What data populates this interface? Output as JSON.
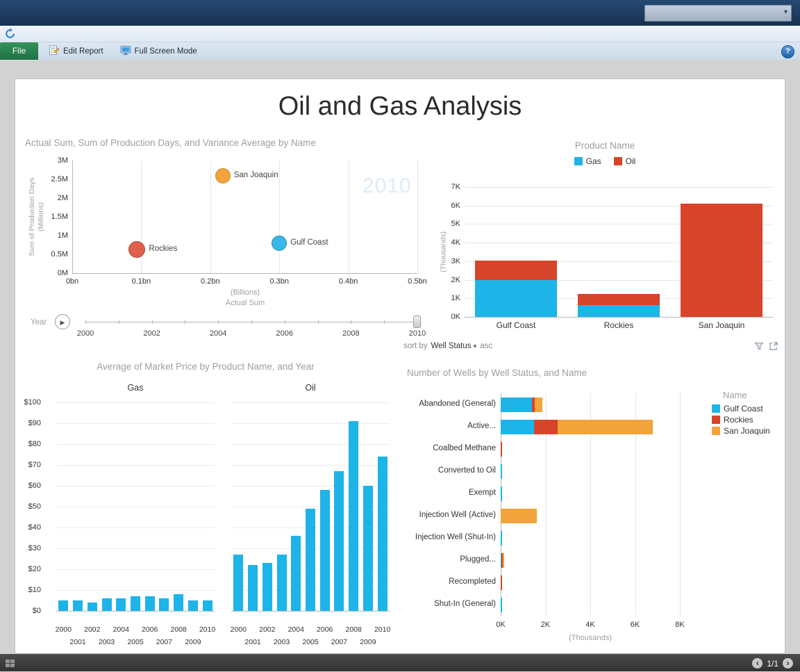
{
  "titlebar": {
    "dropdown_value": ""
  },
  "icons": {
    "play": "▶",
    "caret_down": "▾",
    "chevron_left": "‹",
    "chevron_right": "›",
    "help": "?"
  },
  "toolbar": {
    "file": "File",
    "edit_report": "Edit Report",
    "full_screen": "Full Screen Mode"
  },
  "report": {
    "title": "Oil and Gas Analysis"
  },
  "statusbar": {
    "page": "1/1"
  },
  "chart_data": [
    {
      "type": "scatter",
      "title": "Actual Sum, Sum of Production Days, and Variance Average by Name",
      "ylabel_lines": [
        "Sum of Production Days",
        "(Millions)"
      ],
      "xlabel_lines": [
        "(Billions)",
        "Actual Sum"
      ],
      "x_ticks": [
        "0bn",
        "0.1bn",
        "0.2bn",
        "0.3bn",
        "0.4bn",
        "0.5bn"
      ],
      "y_ticks": [
        "0M",
        "0.5M",
        "1M",
        "1.5M",
        "2M",
        "2.5M",
        "3M"
      ],
      "xlim": [
        0,
        0.5
      ],
      "ylim": [
        0,
        3
      ],
      "watermark": "2010",
      "points": [
        {
          "label": "San Joaquin",
          "x": 0.218,
          "y": 2.6,
          "r": 11,
          "color": "#f2a43b",
          "stroke": "#c68a2e"
        },
        {
          "label": "Gulf Coast",
          "x": 0.3,
          "y": 0.8,
          "r": 11,
          "color": "#3ab7e6",
          "stroke": "#2a8fb5"
        },
        {
          "label": "Rockies",
          "x": 0.094,
          "y": 0.63,
          "r": 12,
          "color": "#e0604c",
          "stroke": "#b34a39"
        }
      ],
      "play_axis": {
        "label": "Year",
        "ticks": [
          "2000",
          "2002",
          "2004",
          "2006",
          "2008",
          "2010"
        ],
        "range": [
          2000,
          2010
        ],
        "value": 2010
      }
    },
    {
      "type": "bar",
      "stacked": true,
      "legend_title": "Product Name",
      "categories": [
        "Gulf Coast",
        "Rockies",
        "San Joaquin"
      ],
      "series": [
        {
          "name": "Gas",
          "color": "#1db4e8",
          "values": [
            2.0,
            0.65,
            0
          ]
        },
        {
          "name": "Oil",
          "color": "#d6442a",
          "values": [
            1.05,
            0.6,
            6.1
          ]
        }
      ],
      "y_ticks": [
        "0K",
        "1K",
        "2K",
        "3K",
        "4K",
        "5K",
        "6K",
        "7K"
      ],
      "ylim": [
        0,
        7
      ],
      "ylabel": "(Thousands)",
      "sort": {
        "prefix": "sort by",
        "field": "Well Status",
        "dir": "asc"
      }
    },
    {
      "type": "bar",
      "title": "Average of Market Price by Product Name, and Year",
      "panels": [
        "Gas",
        "Oil"
      ],
      "x": [
        "2000",
        "2001",
        "2002",
        "2003",
        "2004",
        "2005",
        "2006",
        "2007",
        "2008",
        "2009",
        "2010"
      ],
      "series": [
        {
          "name": "Gas",
          "values": [
            5,
            5,
            4,
            6,
            6,
            7,
            7,
            6,
            8,
            5,
            5
          ]
        },
        {
          "name": "Oil",
          "values": [
            27,
            22,
            23,
            27,
            36,
            49,
            58,
            67,
            91,
            60,
            74
          ]
        }
      ],
      "y_ticks": [
        "$0",
        "$10",
        "$20",
        "$30",
        "$40",
        "$50",
        "$60",
        "$70",
        "$80",
        "$90",
        "$100"
      ],
      "ylim": [
        0,
        100
      ],
      "bar_color": "#1db4e8"
    },
    {
      "type": "bar",
      "orientation": "horizontal",
      "stacked": true,
      "title": "Number of Wells by Well Status, and Name",
      "legend_title": "Name",
      "categories": [
        "Abandoned (General)",
        "Active...",
        "Coalbed Methane",
        "Converted to Oil",
        "Exempt",
        "Injection Well (Active)",
        "Injection Well (Shut-In)",
        "Plugged...",
        "Recompleted",
        "Shut-In (General)"
      ],
      "series": [
        {
          "name": "Gulf Coast",
          "color": "#1db4e8",
          "values": [
            1.4,
            1.5,
            0,
            0.05,
            0.05,
            0,
            0.05,
            0.03,
            0,
            0.07
          ]
        },
        {
          "name": "Rockies",
          "color": "#d6442a",
          "values": [
            0.12,
            1.05,
            0.07,
            0,
            0,
            0,
            0,
            0.05,
            0.05,
            0
          ]
        },
        {
          "name": "San Joaquin",
          "color": "#f2a33c",
          "values": [
            0.33,
            4.25,
            0,
            0,
            0,
            1.6,
            0,
            0.08,
            0,
            0
          ]
        }
      ],
      "x_ticks": [
        "0K",
        "2K",
        "4K",
        "6K",
        "8K"
      ],
      "xlim": [
        0,
        8
      ],
      "xlabel": "(Thousands)"
    }
  ]
}
